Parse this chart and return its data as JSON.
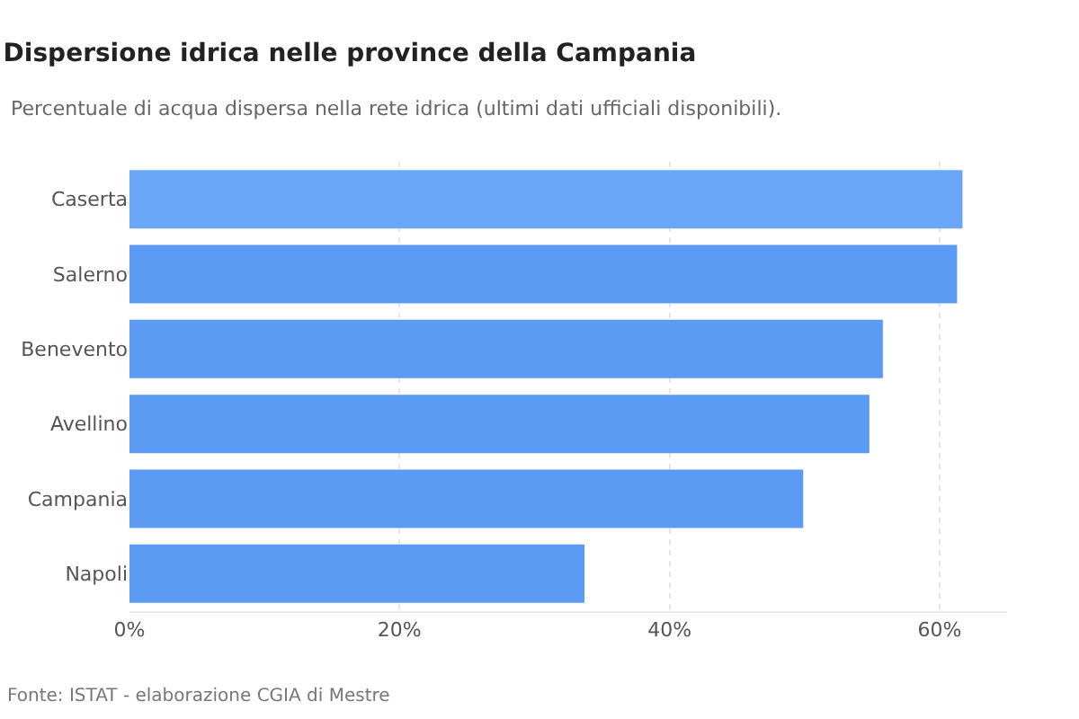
{
  "chart_data": {
    "type": "bar",
    "orientation": "horizontal",
    "title": "Dispersione idrica nelle province della Campania",
    "subtitle": "Percentuale di acqua dispersa nella rete idrica (ultimi dati ufficiali disponibili).",
    "categories": [
      "Caserta",
      "Salerno",
      "Benevento",
      "Avellino",
      "Campania",
      "Napoli"
    ],
    "values": [
      61.7,
      61.3,
      55.8,
      54.8,
      49.9,
      33.7
    ],
    "colors": [
      "#6aa6f8",
      "#5b9bf3",
      "#5b9bf3",
      "#5b9bf3",
      "#5b9bf3",
      "#5b9bf3"
    ],
    "xlim": [
      0,
      65
    ],
    "xticks": [
      {
        "value": 0,
        "label": "0%"
      },
      {
        "value": 20,
        "label": "20%"
      },
      {
        "value": 40,
        "label": "40%"
      },
      {
        "value": 60,
        "label": "60%"
      }
    ],
    "grid": "x",
    "legend": false,
    "annotations": [
      "Fonte: ISTAT - elaborazione CGIA di Mestre"
    ]
  }
}
